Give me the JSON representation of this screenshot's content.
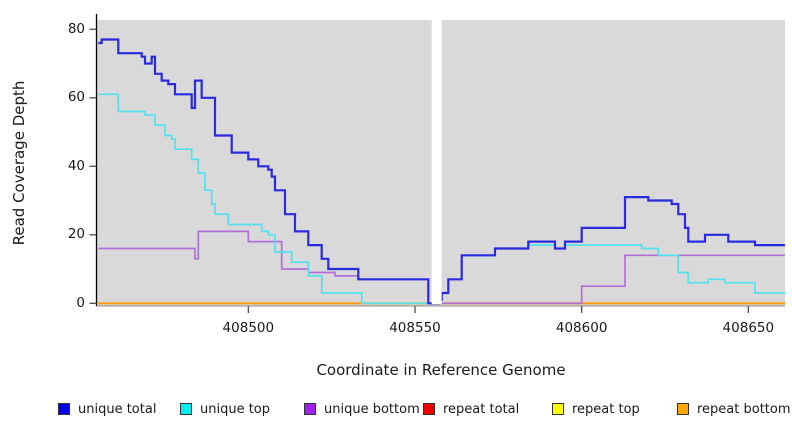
{
  "chart_data": {
    "type": "line",
    "step": true,
    "title": "",
    "xlabel": "Coordinate in Reference Genome",
    "ylabel": "Read Coverage Depth",
    "xlim": [
      408455,
      408661
    ],
    "ylim": [
      0,
      82.6
    ],
    "x_ticks": [
      408500,
      408550,
      408600,
      408650
    ],
    "y_ticks": [
      0,
      20,
      40,
      60,
      80
    ],
    "page_bg": "#ffffff",
    "panel_bg": "#d9d9d9",
    "axis_color": "#000000",
    "tick_color": "#4d4d4d",
    "grid": "off",
    "masked_region": {
      "x_from": 408555,
      "x_to": 408558,
      "color": "#ffffff"
    },
    "series": [
      {
        "name": "unique total",
        "color": "#2a2adf",
        "legend_color": "#0000ee",
        "width": 2.2,
        "z": 6,
        "points": [
          [
            408455,
            76
          ],
          [
            408456,
            77
          ],
          [
            408461,
            73
          ],
          [
            408468,
            72
          ],
          [
            408469,
            70
          ],
          [
            408471,
            72
          ],
          [
            408472,
            67
          ],
          [
            408474,
            65
          ],
          [
            408476,
            64
          ],
          [
            408478,
            61
          ],
          [
            408483,
            57
          ],
          [
            408484,
            65
          ],
          [
            408486,
            60
          ],
          [
            408490,
            49
          ],
          [
            408495,
            44
          ],
          [
            408500,
            42
          ],
          [
            408503,
            40
          ],
          [
            408506,
            39
          ],
          [
            408507,
            37
          ],
          [
            408508,
            33
          ],
          [
            408511,
            26
          ],
          [
            408514,
            21
          ],
          [
            408518,
            17
          ],
          [
            408522,
            13
          ],
          [
            408524,
            10
          ],
          [
            408533,
            7
          ],
          [
            408554,
            0
          ],
          [
            408557,
            1
          ],
          [
            408558,
            3
          ],
          [
            408560,
            7
          ],
          [
            408564,
            14
          ],
          [
            408574,
            16
          ],
          [
            408584,
            18
          ],
          [
            408592,
            16
          ],
          [
            408595,
            18
          ],
          [
            408600,
            22
          ],
          [
            408613,
            31
          ],
          [
            408620,
            30
          ],
          [
            408627,
            29
          ],
          [
            408629,
            26
          ],
          [
            408631,
            22
          ],
          [
            408632,
            18
          ],
          [
            408637,
            20
          ],
          [
            408644,
            18
          ],
          [
            408652,
            17
          ],
          [
            408661,
            17
          ]
        ]
      },
      {
        "name": "unique top",
        "color": "#52e1ed",
        "legend_color": "#00eeee",
        "width": 1.7,
        "z": 5,
        "points": [
          [
            408455,
            61
          ],
          [
            408461,
            56
          ],
          [
            408469,
            55
          ],
          [
            408472,
            52
          ],
          [
            408475,
            49
          ],
          [
            408477,
            48
          ],
          [
            408478,
            45
          ],
          [
            408483,
            42
          ],
          [
            408485,
            38
          ],
          [
            408487,
            33
          ],
          [
            408489,
            29
          ],
          [
            408490,
            26
          ],
          [
            408494,
            23
          ],
          [
            408504,
            21
          ],
          [
            408506,
            20
          ],
          [
            408508,
            15
          ],
          [
            408513,
            12
          ],
          [
            408518,
            8
          ],
          [
            408522,
            3
          ],
          [
            408534,
            0
          ],
          [
            408557,
            1
          ],
          [
            408558,
            3
          ],
          [
            408560,
            7
          ],
          [
            408564,
            14
          ],
          [
            408574,
            16
          ],
          [
            408584,
            17
          ],
          [
            408592,
            16
          ],
          [
            408595,
            17
          ],
          [
            408618,
            16
          ],
          [
            408623,
            14
          ],
          [
            408629,
            9
          ],
          [
            408632,
            6
          ],
          [
            408638,
            7
          ],
          [
            408643,
            6
          ],
          [
            408652,
            3
          ],
          [
            408661,
            3
          ]
        ]
      },
      {
        "name": "unique bottom",
        "color": "#b26fda",
        "legend_color": "#a020f0",
        "width": 1.7,
        "z": 4,
        "points": [
          [
            408455,
            16
          ],
          [
            408484,
            13
          ],
          [
            408485,
            21
          ],
          [
            408500,
            18
          ],
          [
            408510,
            10
          ],
          [
            408518,
            9
          ],
          [
            408526,
            8
          ],
          [
            408533,
            7
          ],
          [
            408554,
            0
          ],
          [
            408600,
            5
          ],
          [
            408613,
            14
          ],
          [
            408661,
            14
          ]
        ]
      },
      {
        "name": "repeat total",
        "color": "#e04848",
        "legend_color": "#ee0000",
        "width": 1.6,
        "z": 1,
        "points": [
          [
            408455,
            0
          ],
          [
            408661,
            0
          ]
        ]
      },
      {
        "name": "repeat top",
        "color": "#f5f51a",
        "legend_color": "#ffff00",
        "width": 1.6,
        "z": 2,
        "points": [
          [
            408455,
            0
          ],
          [
            408661,
            0
          ]
        ]
      },
      {
        "name": "repeat bottom",
        "color": "#ff9c1a",
        "legend_color": "#ffa500",
        "width": 2,
        "z": 3,
        "points": [
          [
            408455,
            0
          ],
          [
            408661,
            0
          ]
        ]
      }
    ]
  },
  "legend": {
    "labels": [
      "unique total",
      "unique top",
      "unique bottom",
      "repeat total",
      "repeat top",
      "repeat bottom"
    ]
  }
}
